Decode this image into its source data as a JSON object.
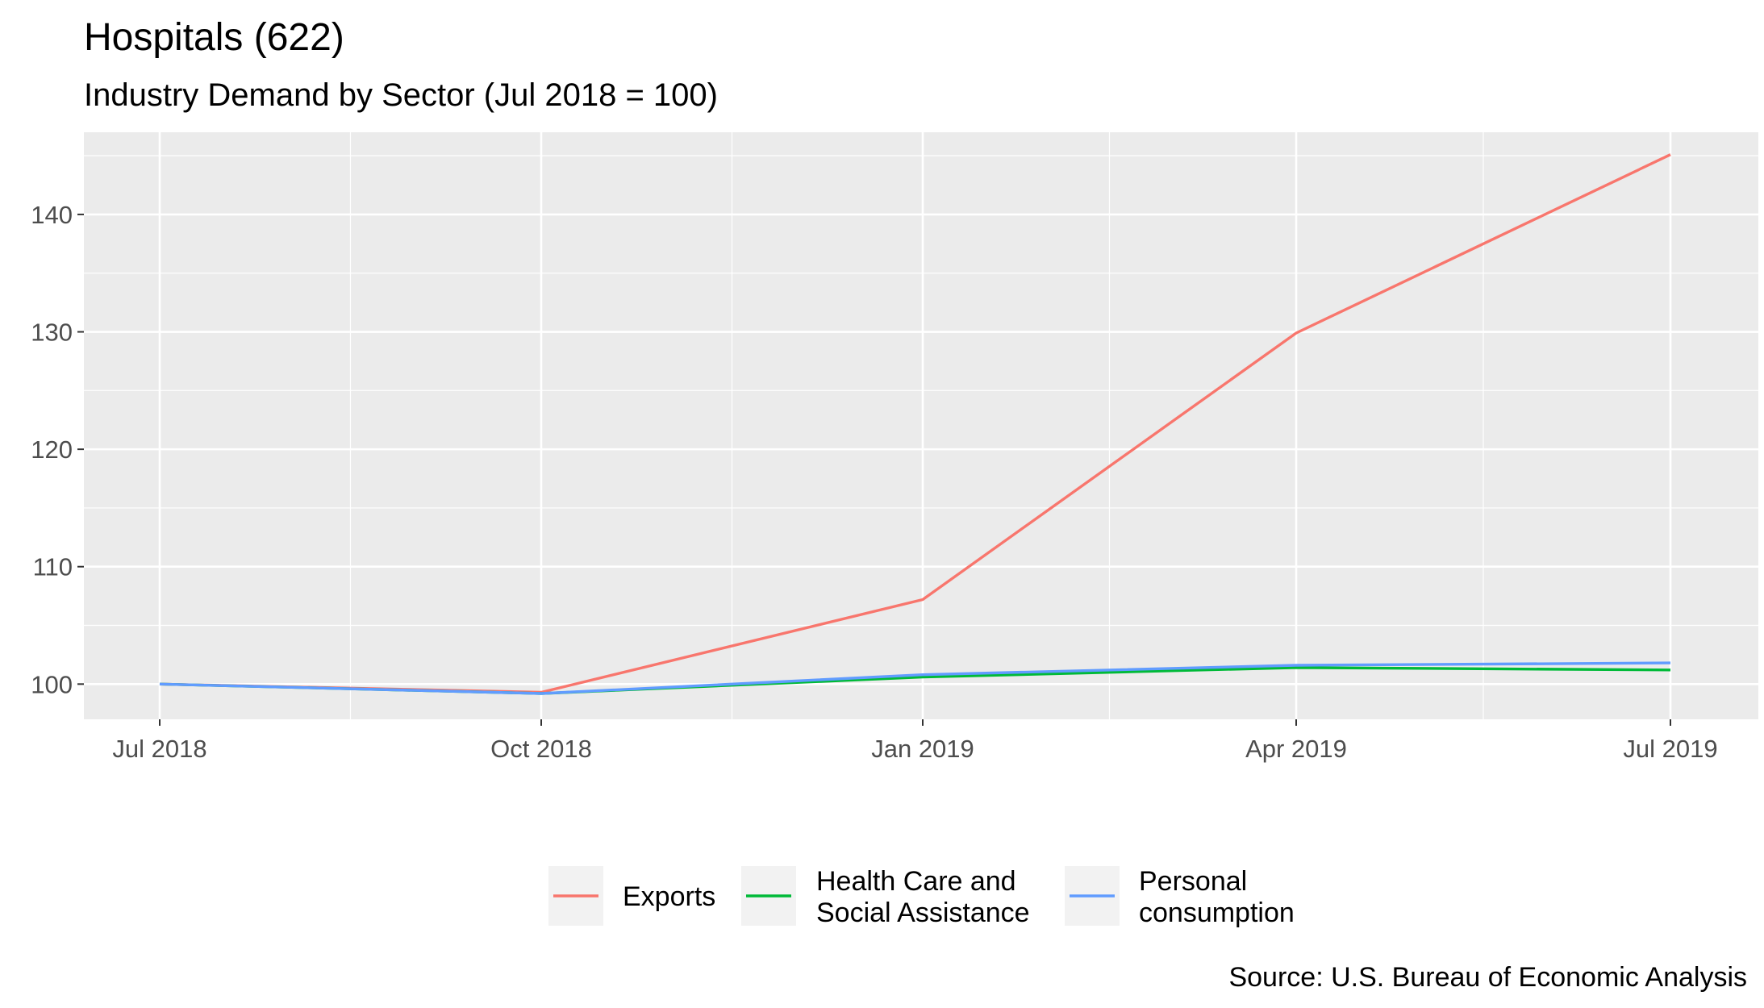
{
  "chart_data": {
    "type": "line",
    "title": "Hospitals (622)",
    "subtitle": "Industry Demand by Sector (Jul 2018 = 100)",
    "caption": "Source: U.S. Bureau of Economic Analysis",
    "xlabel": "",
    "ylabel": "",
    "x": [
      "2018-07-01",
      "2018-10-01",
      "2019-01-01",
      "2019-04-01",
      "2019-07-01"
    ],
    "x_tick_labels": [
      "Jul 2018",
      "Oct 2018",
      "Jan 2019",
      "Apr 2019",
      "Jul 2019"
    ],
    "y_ticks": [
      100,
      110,
      120,
      130,
      140
    ],
    "ylim": [
      97,
      147
    ],
    "grid": true,
    "legend_position": "bottom",
    "series": [
      {
        "name": "Exports",
        "color": "#F8766D",
        "values": [
          100,
          99.3,
          107.2,
          129.9,
          145.1
        ]
      },
      {
        "name": "Health Care and\nSocial Assistance",
        "color": "#00BA38",
        "values": [
          100,
          99.2,
          100.6,
          101.4,
          101.2
        ]
      },
      {
        "name": "Personal\nconsumption",
        "color": "#619CFF",
        "values": [
          100,
          99.2,
          100.8,
          101.6,
          101.8
        ]
      }
    ]
  }
}
